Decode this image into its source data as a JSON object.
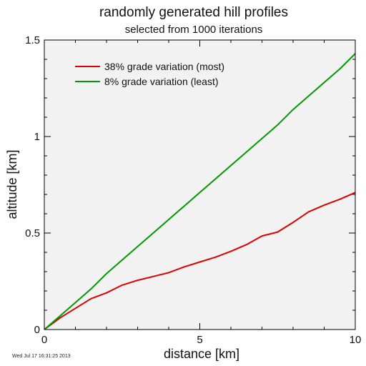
{
  "chart_data": {
    "type": "line",
    "title": "randomly generated hill profiles",
    "subtitle": "selected from 1000 iterations",
    "xlabel": "distance [km]",
    "ylabel": "altitude [km]",
    "xlim": [
      0,
      10
    ],
    "ylim": [
      0,
      1.5
    ],
    "x_ticks": [
      0,
      5,
      10
    ],
    "y_ticks": [
      0,
      0.5,
      1,
      1.5
    ],
    "x_tick_labels": [
      "0",
      "5",
      "10"
    ],
    "y_tick_labels": [
      "0",
      "0.5",
      "1",
      "1.5"
    ],
    "grid": false,
    "legend_position": "top-left",
    "background": "#f2f2f2",
    "series": [
      {
        "name": "38% grade variation (most)",
        "color": "#dd0000",
        "x": [
          0,
          0.5,
          1.0,
          1.5,
          2.0,
          2.5,
          3.0,
          3.5,
          4.0,
          4.5,
          5.0,
          5.5,
          6.0,
          6.5,
          7.0,
          7.5,
          8.0,
          8.5,
          9.0,
          9.5,
          10.0
        ],
        "y": [
          0,
          0.06,
          0.11,
          0.16,
          0.19,
          0.23,
          0.255,
          0.275,
          0.295,
          0.325,
          0.35,
          0.375,
          0.405,
          0.44,
          0.485,
          0.505,
          0.555,
          0.61,
          0.645,
          0.675,
          0.71
        ]
      },
      {
        "name": "8% grade variation (least)",
        "color": "#009900",
        "x": [
          0,
          0.5,
          1.0,
          1.5,
          2.0,
          2.5,
          3.0,
          3.5,
          4.0,
          4.5,
          5.0,
          5.5,
          6.0,
          6.5,
          7.0,
          7.5,
          8.0,
          8.5,
          9.0,
          9.5,
          10.0
        ],
        "y": [
          0,
          0.07,
          0.14,
          0.21,
          0.29,
          0.36,
          0.43,
          0.5,
          0.57,
          0.64,
          0.71,
          0.78,
          0.85,
          0.92,
          0.99,
          1.06,
          1.14,
          1.21,
          1.28,
          1.35,
          1.43
        ]
      }
    ]
  },
  "timestamp": "Wed Jul 17 16:31:25 2013"
}
